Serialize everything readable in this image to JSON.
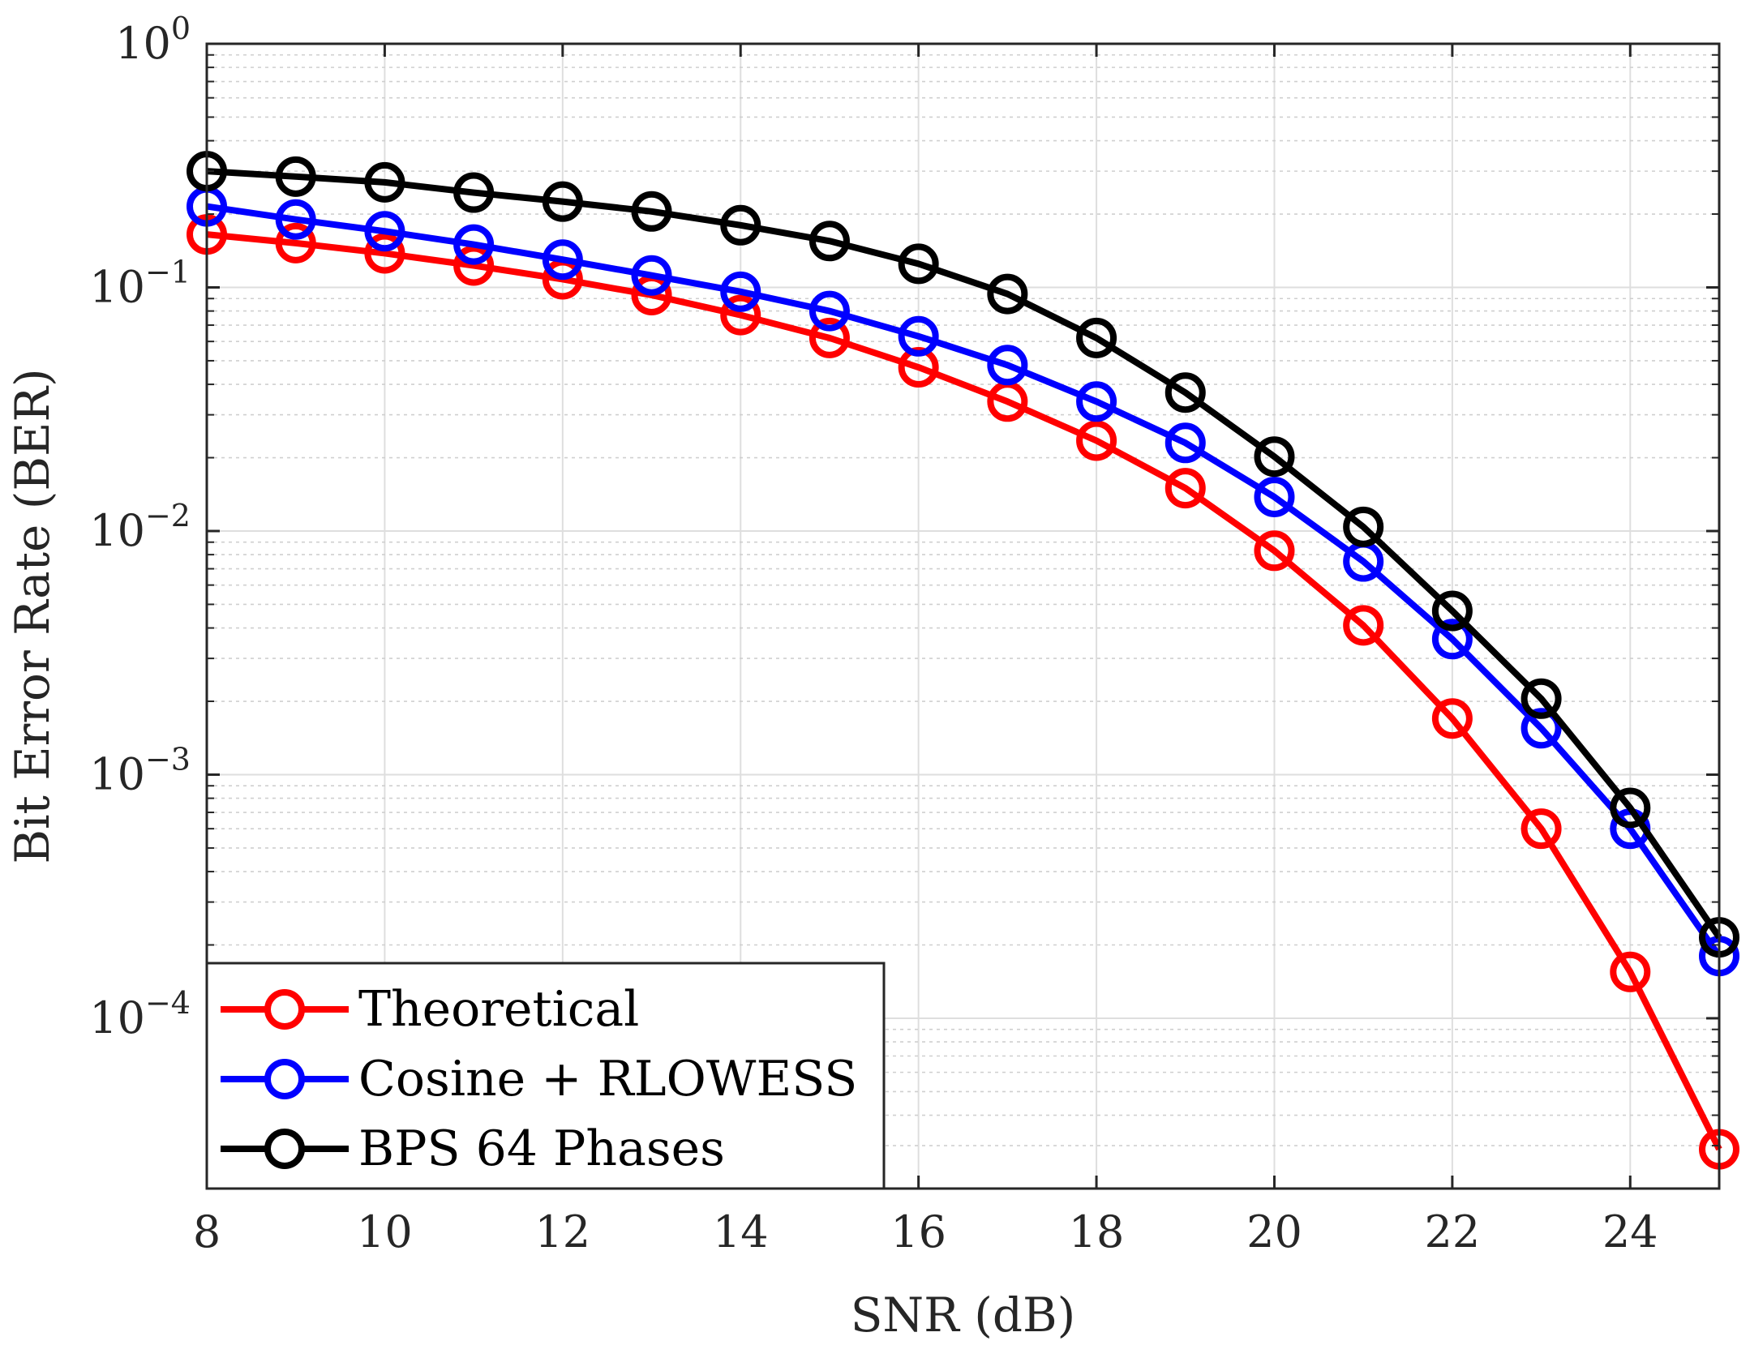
{
  "chart_data": {
    "type": "line",
    "xlabel": "SNR (dB)",
    "ylabel": "Bit Error Rate (BER)",
    "x_ticks": [
      "8",
      "10",
      "12",
      "14",
      "16",
      "18",
      "20",
      "22",
      "24"
    ],
    "y_tick_base": "10",
    "y_tick_exponents": [
      "0",
      "−1",
      "−2",
      "−3",
      "−4"
    ],
    "xlim": [
      8,
      25
    ],
    "ylim": [
      2e-05,
      1
    ],
    "y_scale": "log",
    "grid": true,
    "minor_grid": true,
    "legend_position": "bottom-left",
    "x": [
      8,
      9,
      10,
      11,
      12,
      13,
      14,
      15,
      16,
      17,
      18,
      19,
      20,
      21,
      22,
      23,
      24,
      25
    ],
    "series": [
      {
        "name": "Theoretical",
        "color": "#ff0000",
        "values": [
          0.165,
          0.152,
          0.138,
          0.123,
          0.108,
          0.093,
          0.077,
          0.062,
          0.047,
          0.034,
          0.0235,
          0.015,
          0.0083,
          0.0041,
          0.0017,
          0.0006,
          0.000155,
          2.9e-05
        ]
      },
      {
        "name": "Cosine + RLOWESS",
        "color": "#0000ff",
        "values": [
          0.215,
          0.19,
          0.17,
          0.15,
          0.13,
          0.112,
          0.096,
          0.08,
          0.063,
          0.048,
          0.034,
          0.023,
          0.0138,
          0.0075,
          0.0036,
          0.00155,
          0.0006,
          0.00018
        ]
      },
      {
        "name": "BPS 64 Phases",
        "color": "#000000",
        "values": [
          0.3,
          0.285,
          0.27,
          0.245,
          0.225,
          0.205,
          0.18,
          0.155,
          0.125,
          0.094,
          0.062,
          0.037,
          0.0202,
          0.0104,
          0.0047,
          0.00205,
          0.00073,
          0.000215
        ]
      }
    ]
  }
}
